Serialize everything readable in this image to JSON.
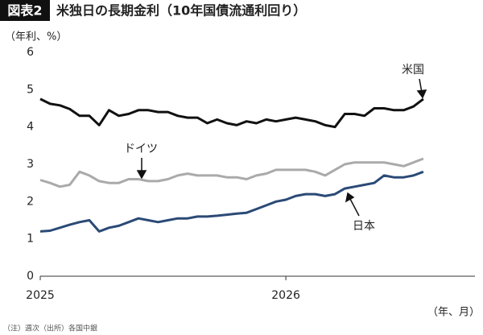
{
  "chart_data": {
    "type": "line",
    "badge": "図表2",
    "title": "米独日の長期金利（10年国債流通利回り）",
    "y_label": "（年利、%）",
    "x_label": "（年、月）",
    "note": "（注）週次（出所）各国中銀",
    "x": [
      2025,
      2025.04,
      2025.08,
      2025.12,
      2025.16,
      2025.2,
      2025.24,
      2025.28,
      2025.32,
      2025.36,
      2025.4,
      2025.44,
      2025.48,
      2025.52,
      2025.56,
      2025.6,
      2025.64,
      2025.68,
      2025.72,
      2025.76,
      2025.8,
      2025.84,
      2025.88,
      2025.92,
      2025.96,
      2026,
      2026.04,
      2026.08,
      2026.12,
      2026.16,
      2026.2,
      2026.24,
      2026.28,
      2026.32,
      2026.36,
      2026.4,
      2026.44,
      2026.48,
      2026.52,
      2026.56
    ],
    "xlim": [
      2025,
      2026.77
    ],
    "xticks": [
      2025,
      2026
    ],
    "ylim": [
      0,
      6
    ],
    "yticks": [
      0,
      1,
      2,
      3,
      4,
      5,
      6
    ],
    "grid": false,
    "series": [
      {
        "name": "米国",
        "color": "#111111",
        "values": [
          4.75,
          4.62,
          4.58,
          4.48,
          4.3,
          4.3,
          4.05,
          4.45,
          4.3,
          4.35,
          4.45,
          4.45,
          4.4,
          4.4,
          4.3,
          4.25,
          4.25,
          4.1,
          4.2,
          4.1,
          4.05,
          4.15,
          4.1,
          4.2,
          4.15,
          4.2,
          4.25,
          4.2,
          4.15,
          4.05,
          4.0,
          4.35,
          4.35,
          4.3,
          4.5,
          4.5,
          4.45,
          4.45,
          4.55,
          4.75
        ]
      },
      {
        "name": "ドイツ",
        "color": "#aaaaaa",
        "values": [
          2.58,
          2.5,
          2.4,
          2.45,
          2.8,
          2.7,
          2.55,
          2.5,
          2.5,
          2.6,
          2.6,
          2.55,
          2.55,
          2.6,
          2.7,
          2.75,
          2.7,
          2.7,
          2.7,
          2.65,
          2.65,
          2.6,
          2.7,
          2.75,
          2.85,
          2.85,
          2.85,
          2.85,
          2.8,
          2.7,
          2.85,
          3.0,
          3.05,
          3.05,
          3.05,
          3.05,
          3.0,
          2.95,
          3.05,
          3.15
        ]
      },
      {
        "name": "日本",
        "color": "#2b4a76",
        "values": [
          1.2,
          1.22,
          1.3,
          1.38,
          1.45,
          1.5,
          1.2,
          1.3,
          1.35,
          1.45,
          1.55,
          1.5,
          1.45,
          1.5,
          1.55,
          1.55,
          1.6,
          1.6,
          1.62,
          1.65,
          1.68,
          1.7,
          1.8,
          1.9,
          2.0,
          2.05,
          2.15,
          2.2,
          2.2,
          2.15,
          2.2,
          2.35,
          2.4,
          2.45,
          2.5,
          2.7,
          2.65,
          2.65,
          2.7,
          2.8
        ]
      }
    ]
  }
}
